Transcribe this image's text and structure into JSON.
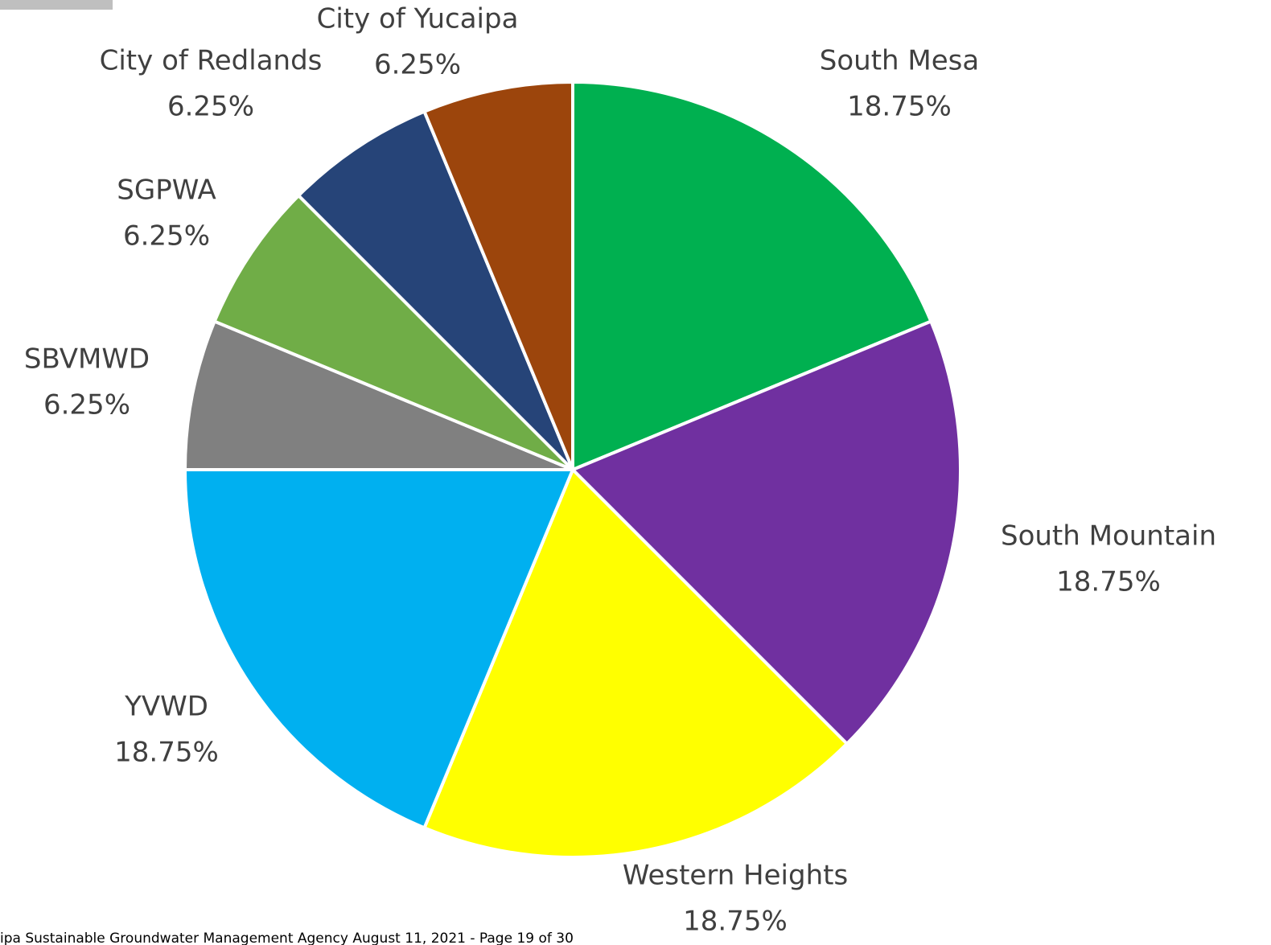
{
  "chart_data": {
    "type": "pie",
    "categories": [
      "South Mesa",
      "South Mountain",
      "Western Heights",
      "YVWD",
      "SBVMWD",
      "SGPWA",
      "City of Redlands",
      "City of Yucaipa"
    ],
    "values": [
      18.75,
      18.75,
      18.75,
      18.75,
      6.25,
      6.25,
      6.25,
      6.25
    ],
    "value_labels": [
      "18.75%",
      "18.75%",
      "18.75%",
      "18.75%",
      "6.25%",
      "6.25%",
      "6.25%",
      "6.25%"
    ],
    "colors": [
      "#00b050",
      "#7030a0",
      "#ffff00",
      "#00b0f0",
      "#808080",
      "#70ad47",
      "#264478",
      "#9c450c"
    ]
  },
  "footer": "ipa Sustainable Groundwater Management Agency August 11, 2021 - Page 19 of 30"
}
